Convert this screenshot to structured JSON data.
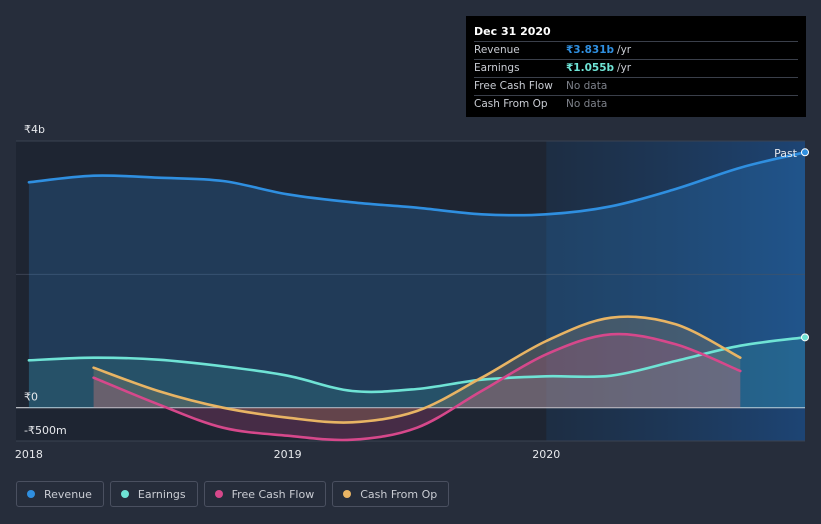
{
  "chart_data": {
    "type": "area",
    "x": [
      2018.0,
      2018.25,
      2018.5,
      2018.75,
      2019.0,
      2019.25,
      2019.5,
      2019.75,
      2020.0,
      2020.25,
      2020.5,
      2020.75,
      2021.0
    ],
    "series": [
      {
        "name": "Revenue",
        "color": "#2f8fe0",
        "values": [
          3.38,
          3.48,
          3.45,
          3.4,
          3.2,
          3.08,
          3.0,
          2.9,
          2.9,
          3.02,
          3.28,
          3.6,
          3.831
        ]
      },
      {
        "name": "Earnings",
        "color": "#6fe3d5",
        "values": [
          0.71,
          0.75,
          0.72,
          0.62,
          0.48,
          0.25,
          0.28,
          0.42,
          0.47,
          0.48,
          0.7,
          0.93,
          1.055
        ]
      },
      {
        "name": "Free Cash Flow",
        "color": "#d6488b",
        "x": [
          2018.25,
          2018.5,
          2018.75,
          2019.0,
          2019.25,
          2019.5,
          2019.75,
          2020.0,
          2020.25,
          2020.5,
          2020.75
        ],
        "values": [
          0.45,
          0.05,
          -0.3,
          -0.42,
          -0.48,
          -0.3,
          0.25,
          0.8,
          1.1,
          0.95,
          0.55
        ]
      },
      {
        "name": "Cash From Op",
        "color": "#e8b464",
        "x": [
          2018.25,
          2018.5,
          2018.75,
          2019.0,
          2019.25,
          2019.5,
          2019.75,
          2020.0,
          2020.25,
          2020.5,
          2020.75
        ],
        "values": [
          0.6,
          0.25,
          0.0,
          -0.15,
          -0.22,
          -0.05,
          0.45,
          1.0,
          1.35,
          1.25,
          0.75
        ]
      }
    ],
    "ylim": [
      -0.5,
      4.0
    ],
    "y_ticks": [
      {
        "value": 4,
        "label": "₹4b"
      },
      {
        "value": 0,
        "label": "₹0"
      },
      {
        "value": -0.5,
        "label": "-₹500m"
      }
    ],
    "x_ticks": [
      {
        "value": 2018,
        "label": "2018"
      },
      {
        "value": 2019,
        "label": "2019"
      },
      {
        "value": 2020,
        "label": "2020"
      }
    ],
    "xlim": [
      2017.95,
      2021.0
    ],
    "past_start": 2020.0,
    "past_label": "Past",
    "gridlines": true
  },
  "tooltip": {
    "date": "Dec 31 2020",
    "rows": [
      {
        "label": "Revenue",
        "value": "₹3.831b",
        "unit": "/yr",
        "color": "#2f8fe0"
      },
      {
        "label": "Earnings",
        "value": "₹1.055b",
        "unit": "/yr",
        "color": "#6fe3d5"
      },
      {
        "label": "Free Cash Flow",
        "nodata": "No data"
      },
      {
        "label": "Cash From Op",
        "nodata": "No data"
      }
    ]
  },
  "legend": [
    {
      "label": "Revenue",
      "color": "#2f8fe0"
    },
    {
      "label": "Earnings",
      "color": "#6fe3d5"
    },
    {
      "label": "Free Cash Flow",
      "color": "#d6488b"
    },
    {
      "label": "Cash From Op",
      "color": "#e8b464"
    }
  ]
}
